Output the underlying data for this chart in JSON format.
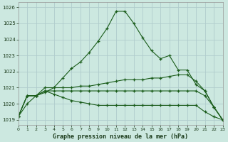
{
  "title": "Graphe pression niveau de la mer (hPa)",
  "background_color": "#cce8e0",
  "grid_color": "#b0cccc",
  "line_color": "#1a5c1a",
  "xlim": [
    0,
    23
  ],
  "ylim": [
    1018.7,
    1026.3
  ],
  "yticks": [
    1019,
    1020,
    1021,
    1022,
    1023,
    1024,
    1025,
    1026
  ],
  "xticks": [
    0,
    1,
    2,
    3,
    4,
    5,
    6,
    7,
    8,
    9,
    10,
    11,
    12,
    13,
    14,
    15,
    16,
    17,
    18,
    19,
    20,
    21,
    22,
    23
  ],
  "series": [
    [
      1019.2,
      1020.0,
      1020.5,
      1020.7,
      1021.0,
      1021.6,
      1022.2,
      1022.6,
      1023.2,
      1023.9,
      1024.7,
      1025.75,
      1025.75,
      1025.0,
      1024.1,
      1023.3,
      1022.8,
      1023.0,
      1022.1,
      1022.1,
      1021.2,
      1020.8,
      1019.8,
      1019.0
    ],
    [
      1019.2,
      1020.5,
      1020.5,
      1021.0,
      1021.0,
      1021.0,
      1021.0,
      1021.1,
      1021.1,
      1021.2,
      1021.3,
      1021.4,
      1021.5,
      1021.5,
      1021.5,
      1021.6,
      1021.6,
      1021.7,
      1021.8,
      1021.8,
      1021.4,
      1020.8,
      1019.8,
      1019.0
    ],
    [
      1019.2,
      1020.5,
      1020.5,
      1020.8,
      1020.8,
      1020.8,
      1020.8,
      1020.8,
      1020.8,
      1020.8,
      1020.8,
      1020.8,
      1020.8,
      1020.8,
      1020.8,
      1020.8,
      1020.8,
      1020.8,
      1020.8,
      1020.8,
      1020.8,
      1020.5,
      1019.8,
      1019.0
    ],
    [
      1019.2,
      1020.5,
      1020.5,
      1020.8,
      1020.6,
      1020.4,
      1020.2,
      1020.1,
      1020.0,
      1019.9,
      1019.9,
      1019.9,
      1019.9,
      1019.9,
      1019.9,
      1019.9,
      1019.9,
      1019.9,
      1019.9,
      1019.9,
      1019.9,
      1019.5,
      1019.2,
      1019.0
    ]
  ]
}
